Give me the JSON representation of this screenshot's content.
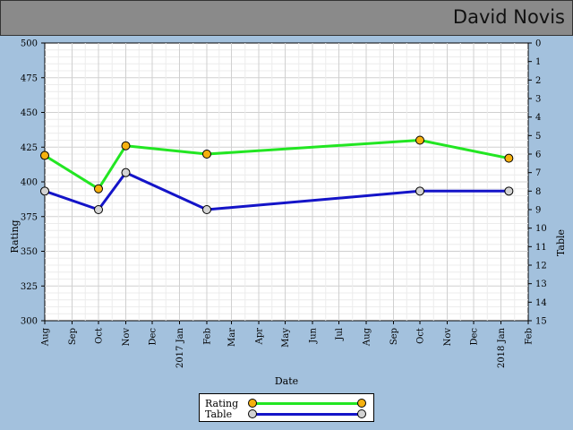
{
  "header": {
    "title": "David Novis"
  },
  "colors": {
    "background": "#a3c1dd",
    "header": "#8a8a8a",
    "rating_line": "#22e622",
    "table_line": "#1414c8",
    "rating_marker": "#f6b10f",
    "table_marker": "#d3d3d3"
  },
  "chart_data": {
    "type": "line",
    "xlabel": "Date",
    "ylabel": "Rating",
    "ylabel_right": "Table",
    "ylim": [
      300,
      500
    ],
    "ylim_right": [
      15,
      0
    ],
    "yticks": [
      "300",
      "325",
      "350",
      "375",
      "400",
      "425",
      "450",
      "475",
      "500"
    ],
    "yticks_right": [
      "0",
      "1",
      "2",
      "3",
      "4",
      "5",
      "6",
      "7",
      "8",
      "9",
      "10",
      "11",
      "12",
      "13",
      "14",
      "15"
    ],
    "xticks": [
      "Aug",
      "Sep",
      "Oct",
      "Nov",
      "Dec",
      "2017 Jan",
      "Feb",
      "Mar",
      "Apr",
      "May",
      "Jun",
      "Jul",
      "Aug",
      "Sep",
      "Oct",
      "Nov",
      "Dec",
      "2018 Jan",
      "Feb"
    ],
    "grid": true,
    "legend_position": "bottom-center",
    "series": [
      {
        "name": "Rating",
        "axis": "left",
        "x": [
          "2016-08-01",
          "2016-10-01",
          "2016-11-01",
          "2017-02-01",
          "2017-10-01",
          "2018-01-10"
        ],
        "values": [
          419,
          395,
          426,
          420,
          430,
          417
        ]
      },
      {
        "name": "Table",
        "axis": "right",
        "x": [
          "2016-08-01",
          "2016-10-01",
          "2016-11-01",
          "2017-02-01",
          "2017-10-01",
          "2018-01-10"
        ],
        "values": [
          8,
          9,
          7,
          9,
          8,
          8
        ]
      }
    ]
  }
}
